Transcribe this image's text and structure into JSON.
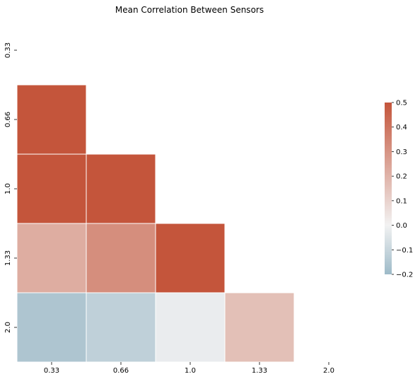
{
  "chart_data": {
    "type": "heatmap",
    "title": "Mean Correlation Between Sensors",
    "x_labels": [
      "0.33",
      "0.66",
      "1.0",
      "1.33",
      "2.0"
    ],
    "y_labels": [
      "0.33",
      "0.66",
      "1.0",
      "1.33",
      "2.0"
    ],
    "mask": "upper-triangle-including-diagonal",
    "values": [
      [
        null,
        null,
        null,
        null,
        null
      ],
      [
        0.5,
        null,
        null,
        null,
        null
      ],
      [
        0.5,
        0.5,
        null,
        null,
        null
      ],
      [
        0.22,
        0.32,
        0.5,
        null,
        null
      ],
      [
        -0.16,
        -0.12,
        -0.02,
        0.16,
        null
      ]
    ],
    "colorbar": {
      "vmin": -0.2,
      "vmax": 0.5,
      "ticks": [
        "0.5",
        "0.4",
        "0.3",
        "0.2",
        "0.1",
        "0.0",
        "−0.1",
        "−0.2"
      ],
      "tick_values": [
        0.5,
        0.4,
        0.3,
        0.2,
        0.1,
        0.0,
        -0.1,
        -0.2
      ]
    },
    "colormap": {
      "negative_color": "#9dbac8",
      "center_color": "#f2f2f2",
      "positive_color": "#c4553b"
    },
    "cell_border_color": "#ffffff"
  }
}
